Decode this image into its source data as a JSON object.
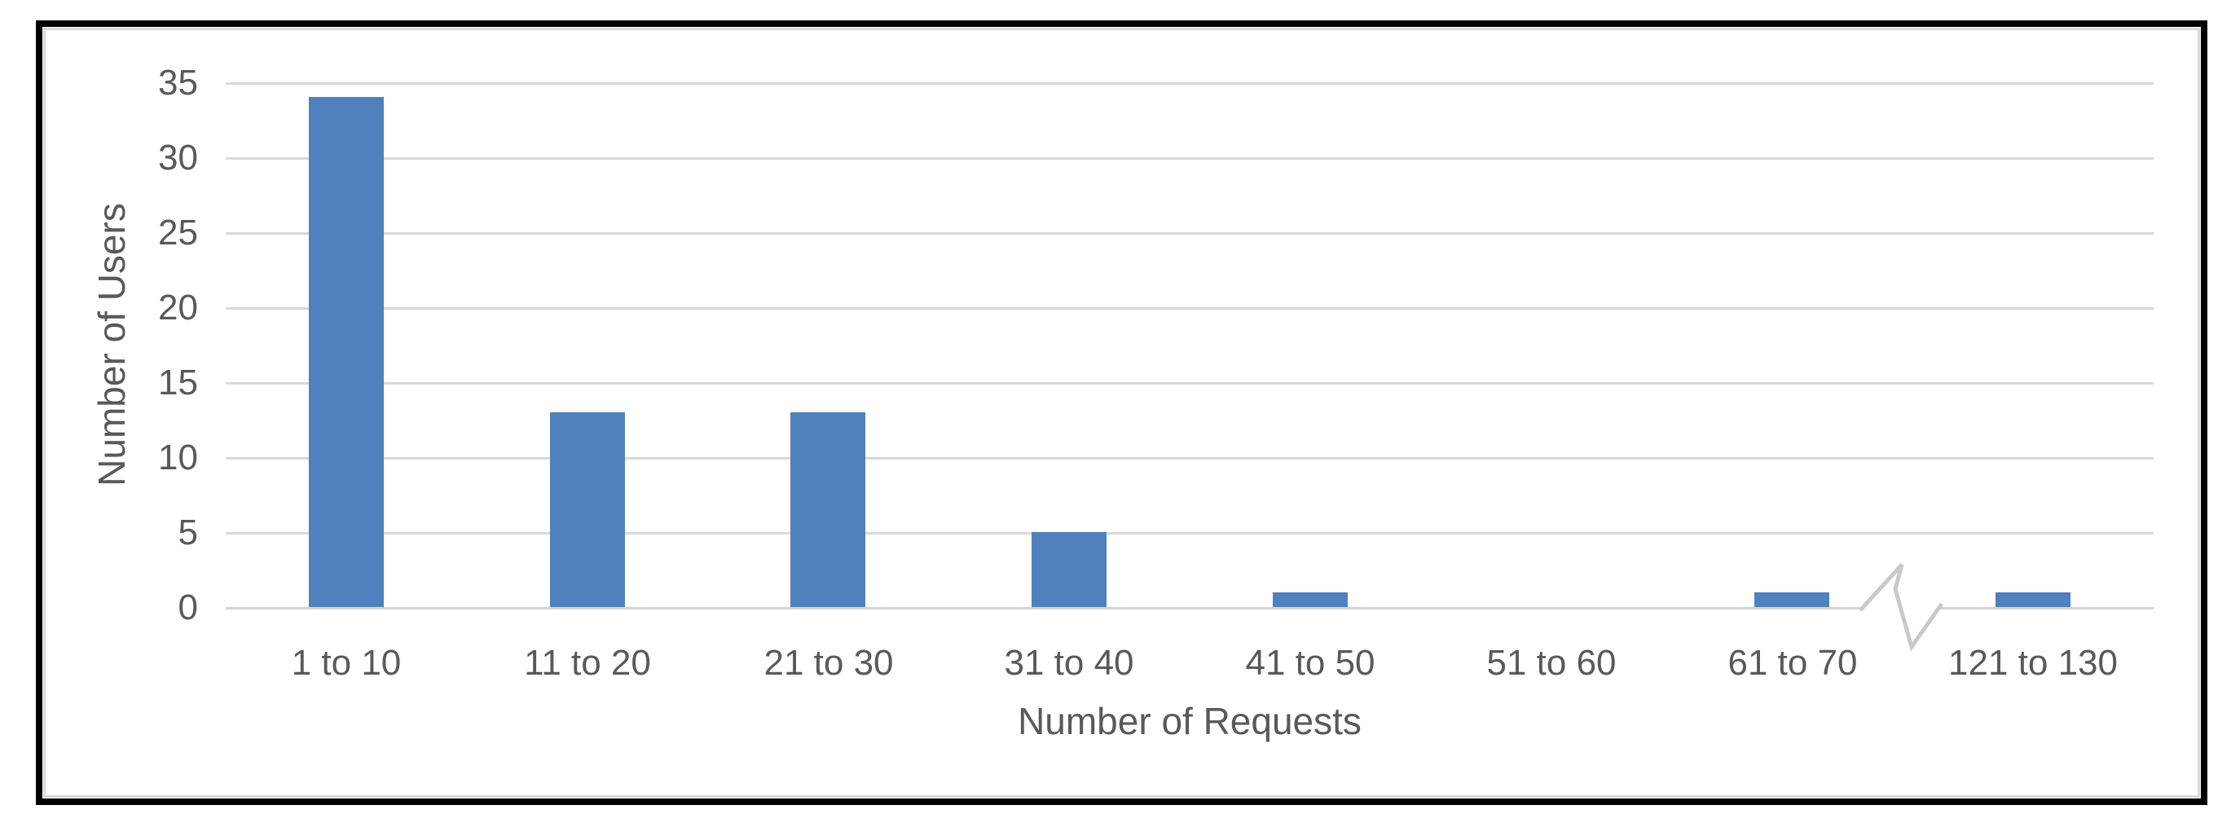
{
  "chart_data": {
    "type": "bar",
    "title": "",
    "xlabel": "Number of Requests",
    "ylabel": "Number of Users",
    "categories": [
      "1 to 10",
      "11 to 20",
      "21 to 30",
      "31 to 40",
      "41 to 50",
      "51 to 60",
      "61 to 70",
      "121 to 130"
    ],
    "values": [
      34,
      13,
      13,
      5,
      1,
      0,
      1,
      1
    ],
    "yticks": [
      0,
      5,
      10,
      15,
      20,
      25,
      30,
      35
    ],
    "ylim": [
      0,
      35
    ],
    "grid": "horizontal-only",
    "legend": "none",
    "axis_break": {
      "present": true,
      "after_category": "61 to 70",
      "before_category": "121 to 130"
    },
    "colors": {
      "bar": "#4E81BD",
      "gridline": "#D9D9D9",
      "axis_line": "#D3D3D3",
      "text": "#595959",
      "frame_border": "#000000",
      "inner_border": "#D9D9D9",
      "background": "#FFFFFF",
      "break_mark": "#C9C9C9"
    }
  }
}
